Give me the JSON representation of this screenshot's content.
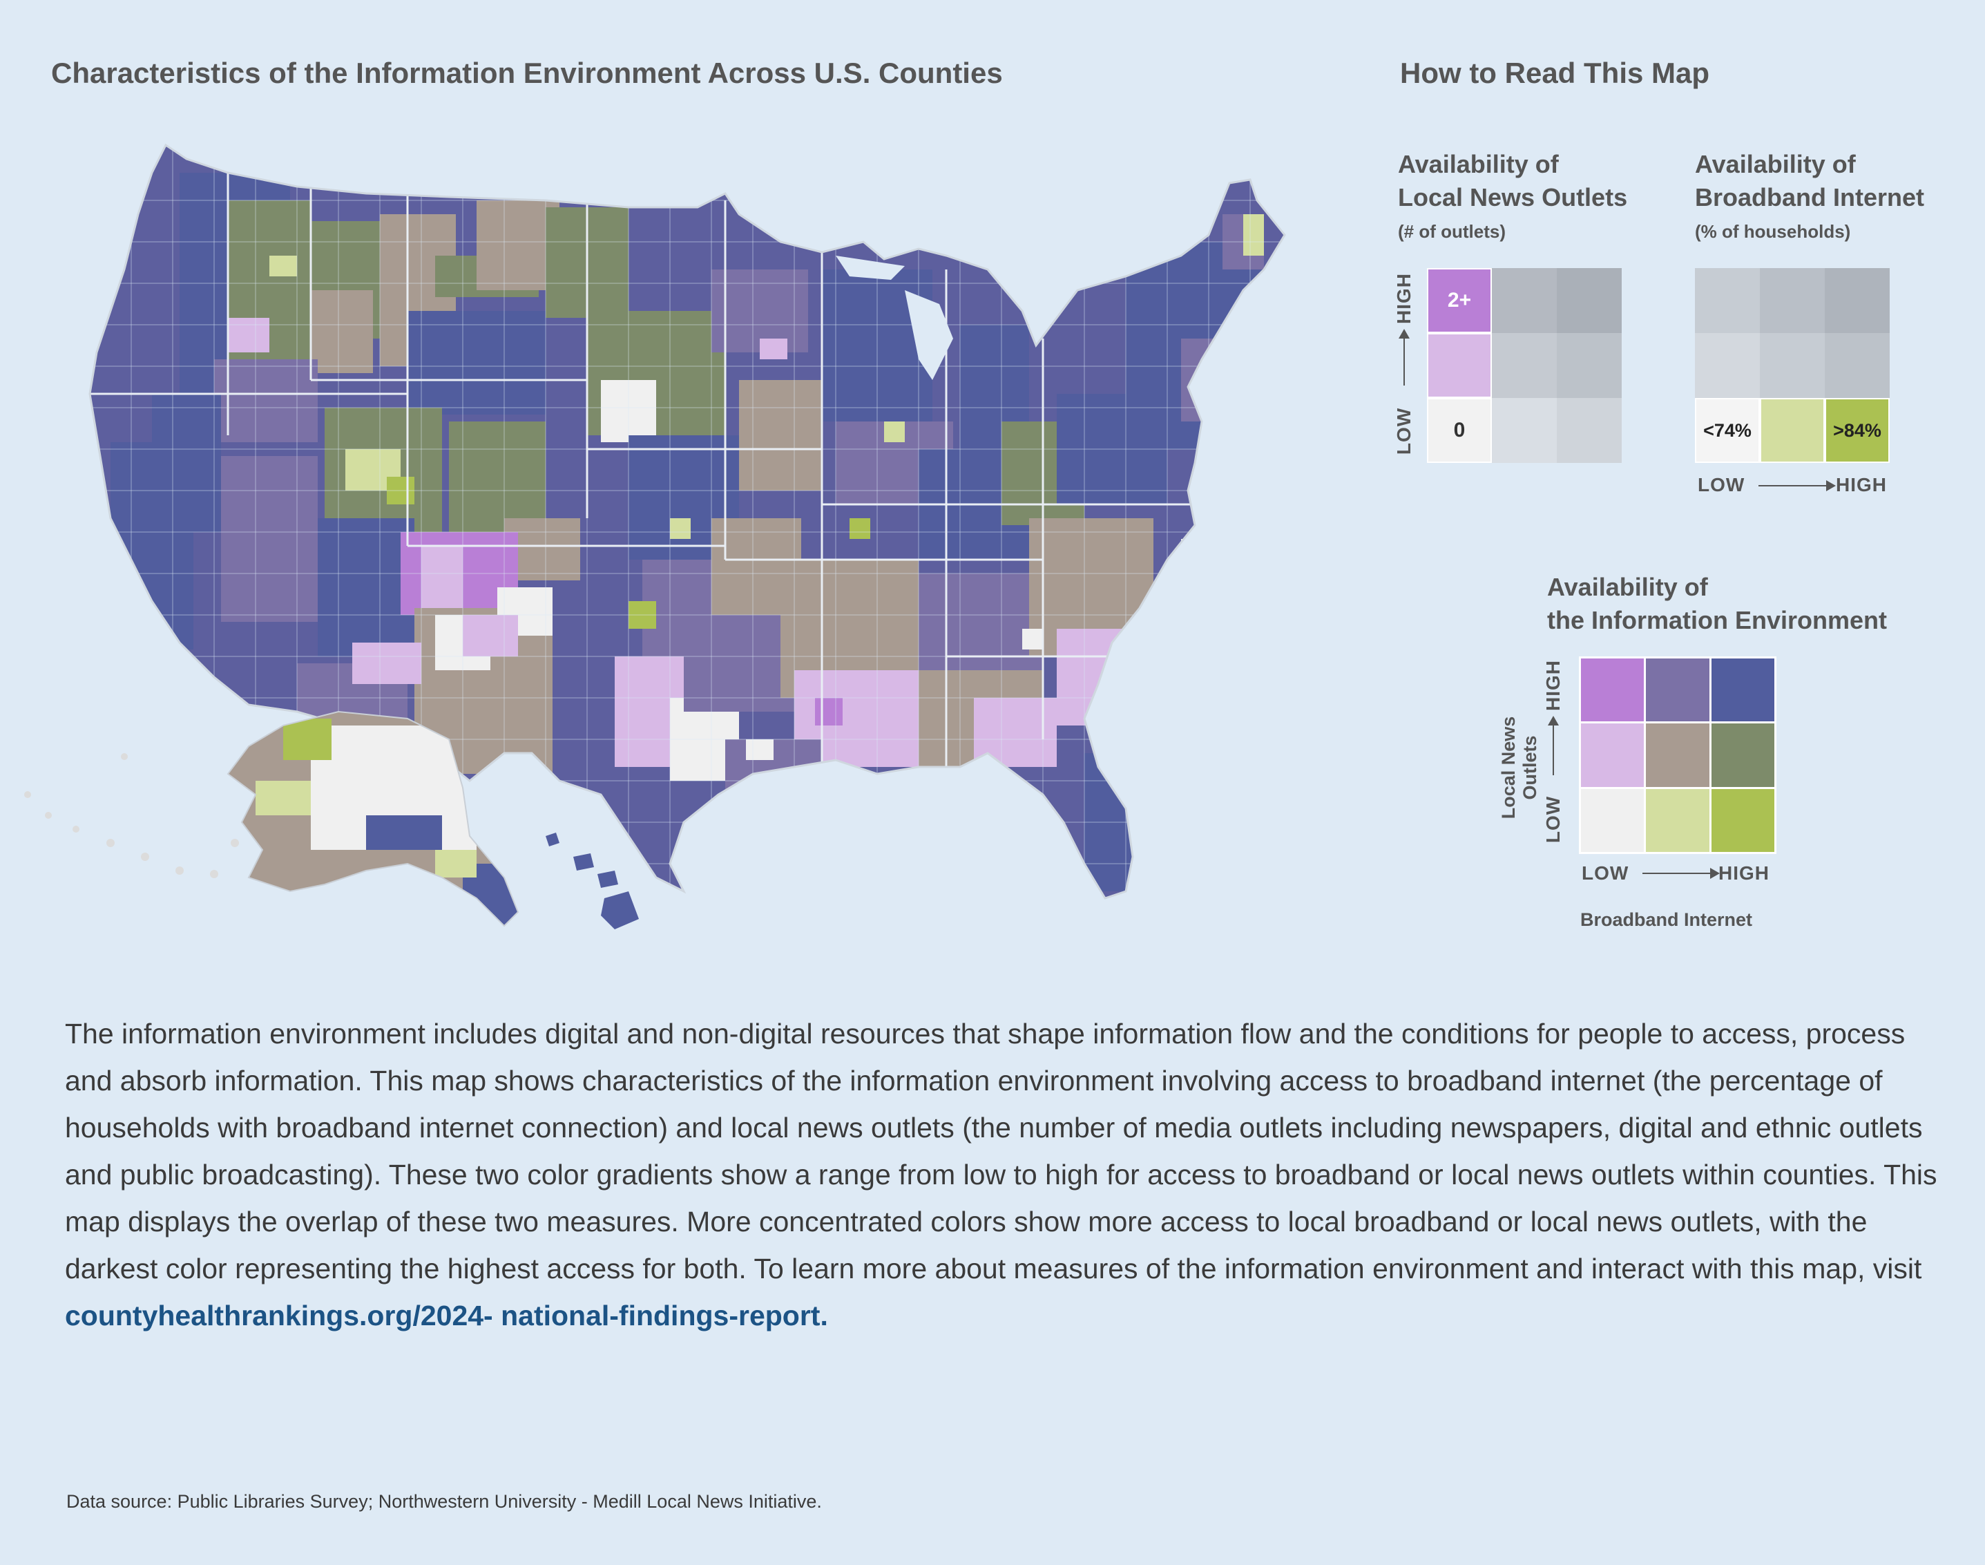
{
  "title": "Characteristics of the Information Environment Across U.S. Counties",
  "how_to_read": {
    "title": "How to Read This Map",
    "news": {
      "title_line1": "Availability of",
      "title_line2": "Local News Outlets",
      "subtitle": "(# of outlets)",
      "high_label": "HIGH",
      "low_label": "LOW",
      "top_value": "2+",
      "bottom_value": "0"
    },
    "broadband": {
      "title_line1": "Availability of",
      "title_line2": "Broadband Internet",
      "subtitle": "(% of households)",
      "low_value": "<74%",
      "high_value": ">84%",
      "low_label": "LOW",
      "high_label": "HIGH"
    },
    "environment": {
      "title_line1": "Availability of",
      "title_line2": "the Information Environment",
      "y_axis_title": "Local News Outlets",
      "x_axis_title": "Broadband Internet",
      "low_label": "LOW",
      "high_label": "HIGH",
      "colors": [
        [
          "#b97fd6",
          "#7b71a6",
          "#515d9e"
        ],
        [
          "#d8b9e6",
          "#a89b91",
          "#7d8b6a"
        ],
        [
          "#f0f0f0",
          "#d3dea0",
          "#abc152"
        ]
      ]
    }
  },
  "description": "The information environment includes digital and non-digital resources that shape information flow and the conditions for people to access, process and absorb information. This map shows characteristics of the information environment involving access to broadband internet (the percentage of households with broadband internet connection) and local news outlets (the number of media outlets including newspapers, digital and ethnic outlets and public broadcasting). These two color gradients show a range from low to high for access to broadband or local news outlets within counties. This map displays the overlap of these two measures. More concentrated colors show more access to local broadband or local news outlets, with the darkest color representing the highest access for both. To learn more about measures of the information environment and interact with this map, visit",
  "link": "countyhealthrankings.org/2024- national-findings-report.",
  "source": "Data source: Public Libraries Survey; Northwestern University - Medill Local News Initiative.",
  "map": {
    "legend_colors": {
      "lowNews_lowBB": "#f0f0f0",
      "lowNews_midBB": "#d3dea0",
      "lowNews_highBB": "#abc152",
      "midNews_lowBB": "#d8b9e6",
      "midNews_midBB": "#a89b91",
      "midNews_highBB": "#7d8b6a",
      "highNews_lowBB": "#b97fd6",
      "highNews_midBB": "#7b71a6",
      "highNews_highBB": "#515d9e"
    }
  }
}
